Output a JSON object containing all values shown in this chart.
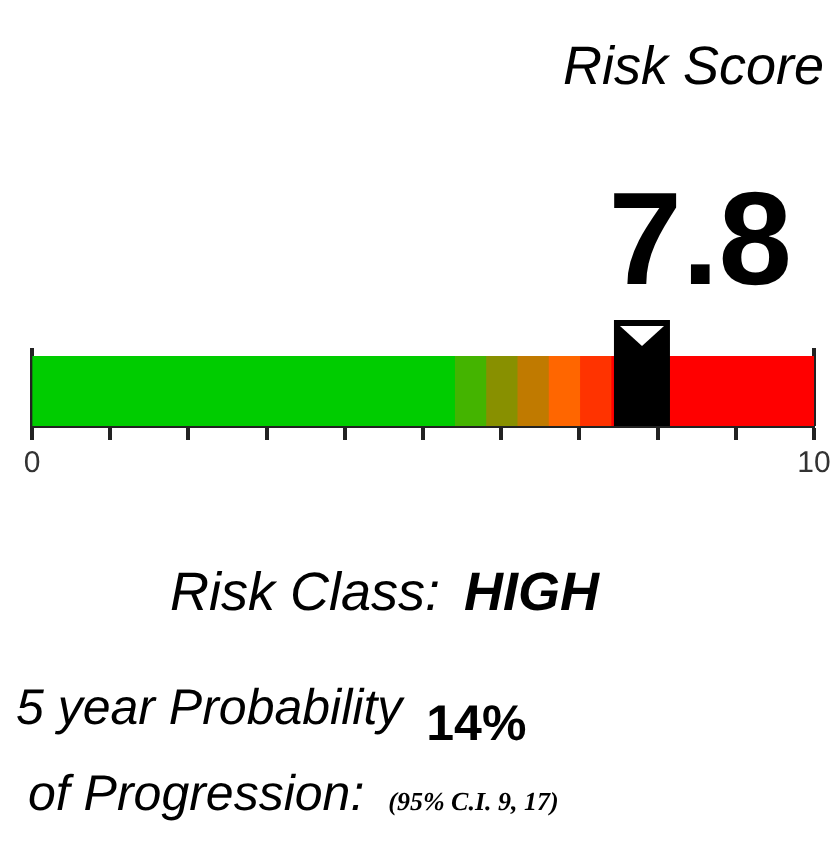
{
  "chart_data": {
    "type": "bar",
    "orientation": "horizontal",
    "stacked": true,
    "title": "Risk Score",
    "categories": [
      null
    ],
    "tick_labels": "x",
    "xlim": [
      0,
      10
    ],
    "xticks": [
      0,
      {
        "value": 1,
        "label": null
      },
      {
        "value": 2,
        "label": null
      },
      {
        "value": 3,
        "label": null
      },
      {
        "value": 4,
        "label": null
      },
      {
        "value": 5,
        "label": null
      },
      {
        "value": 6,
        "label": null
      },
      {
        "value": 7,
        "label": null
      },
      {
        "value": 8,
        "label": null
      },
      {
        "value": 9,
        "label": null
      },
      10
    ],
    "series": [
      {
        "color": "#00cc00",
        "values": [
          5.4
        ]
      },
      {
        "color": "#44b400",
        "values": [
          0.4
        ]
      },
      {
        "color": "#889000",
        "values": [
          0.4
        ]
      },
      {
        "color": "#c07a00",
        "values": [
          0.4
        ]
      },
      {
        "color": "#ff6600",
        "values": [
          0.4
        ]
      },
      {
        "color": "#ff3300",
        "values": [
          0.4
        ]
      },
      {
        "color": "#ff0000",
        "values": [
          2.6
        ]
      }
    ],
    "ref_lines": [
      {
        "axis": "x",
        "value": 7.8,
        "label": "7.8",
        "color": "#000000"
      }
    ],
    "annotations": [
      "Risk Class:",
      "HIGH",
      "5 year Probability",
      "14%",
      "of Progression:",
      "(95% C.I. 9, 17)"
    ]
  }
}
